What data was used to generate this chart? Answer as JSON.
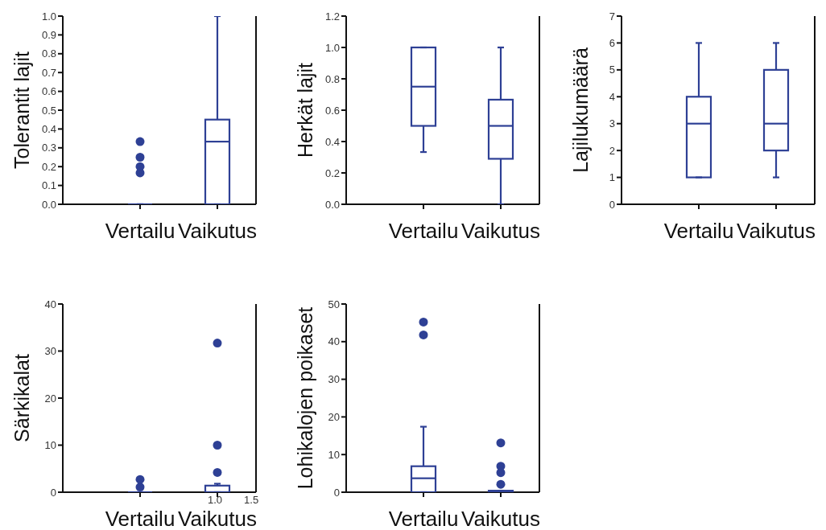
{
  "chart_data": [
    {
      "type": "box",
      "ylabel": "Tolerantit lajit",
      "categories": [
        "Vertailu",
        "Vaikutus"
      ],
      "color": "#2e4095",
      "marker": "circle",
      "ylim": [
        0,
        1
      ],
      "yticks": [
        {
          "value": 0,
          "label": "0.0"
        },
        {
          "value": 0.1,
          "label": "0.1"
        },
        {
          "value": 0.2,
          "label": "0.2"
        },
        {
          "value": 0.3,
          "label": "0.3"
        },
        {
          "value": 0.4,
          "label": "0.4"
        },
        {
          "value": 0.5,
          "label": "0.5"
        },
        {
          "value": 0.6,
          "label": "0.6"
        },
        {
          "value": 0.7,
          "label": "0.7"
        },
        {
          "value": 0.8,
          "label": "0.8"
        },
        {
          "value": 0.9,
          "label": "0.9"
        },
        {
          "value": 1,
          "label": "1.0"
        }
      ],
      "boxes": [
        {
          "low": 0,
          "q1": 0,
          "median": 0,
          "q3": 0,
          "high": 0,
          "outliers": [
            0.167,
            0.2,
            0.25,
            0.333
          ]
        },
        {
          "low": 0,
          "q1": 0,
          "median": 0.333,
          "q3": 0.45,
          "high": 1
        }
      ]
    },
    {
      "type": "box",
      "ylabel": "Herkät lajit",
      "categories": [
        "Vertailu",
        "Vaikutus"
      ],
      "color": "#2e4095",
      "ylim": [
        0,
        1.2
      ],
      "yticks": [
        {
          "value": 0,
          "label": "0.0"
        },
        {
          "value": 0.2,
          "label": "0.2"
        },
        {
          "value": 0.4,
          "label": "0.4"
        },
        {
          "value": 0.6,
          "label": "0.6"
        },
        {
          "value": 0.8,
          "label": "0.8"
        },
        {
          "value": 1,
          "label": "1.0"
        },
        {
          "value": 1.2,
          "label": "1.2"
        }
      ],
      "boxes": [
        {
          "low": 0.333,
          "q1": 0.5,
          "median": 0.75,
          "q3": 1,
          "high": 1
        },
        {
          "low": 0,
          "q1": 0.29,
          "median": 0.5,
          "q3": 0.667,
          "high": 1
        }
      ]
    },
    {
      "type": "box",
      "ylabel": "Lajilukumäärä",
      "categories": [
        "Vertailu",
        "Vaikutus"
      ],
      "color": "#2e4095",
      "ylim": [
        0,
        7
      ],
      "yticks": [
        0,
        1,
        2,
        3,
        4,
        5,
        6,
        7
      ],
      "boxes": [
        {
          "low": 1,
          "q1": 1,
          "median": 3,
          "q3": 4,
          "high": 6
        },
        {
          "low": 1,
          "q1": 2,
          "median": 3,
          "q3": 5,
          "high": 6
        }
      ]
    },
    {
      "type": "box",
      "ylabel": "Särkikalat",
      "categories": [
        "Vertailu",
        "Vaikutus"
      ],
      "color": "#2e4095",
      "marker": "circle",
      "ylim": [
        0,
        40
      ],
      "yticks": [
        0,
        10,
        20,
        30,
        40
      ],
      "annotations": [
        "1.0",
        "1.5"
      ],
      "boxes": [
        {
          "low": 0,
          "q1": 0,
          "median": 0,
          "q3": 0,
          "high": 0,
          "outliers": [
            1.1,
            2.7
          ]
        },
        {
          "low": 0,
          "q1": 0,
          "median": 0,
          "q3": 1.4,
          "high": 1.8,
          "outliers": [
            4.2,
            10,
            31.7
          ]
        }
      ]
    },
    {
      "type": "box",
      "ylabel": "Lohikalojen poikaset",
      "categories": [
        "Vertailu",
        "Vaikutus"
      ],
      "color": "#2e4095",
      "marker": "circle",
      "ylim": [
        0,
        50
      ],
      "yticks": [
        0,
        10,
        20,
        30,
        40,
        50
      ],
      "boxes": [
        {
          "low": 0,
          "q1": 0,
          "median": 3.7,
          "q3": 6.9,
          "high": 17.4,
          "outliers": [
            41.8,
            45.2
          ]
        },
        {
          "low": 0,
          "q1": 0,
          "median": 0,
          "q3": 0.4,
          "high": 0.4,
          "outliers": [
            2.1,
            5.2,
            6.9,
            13.1
          ]
        }
      ]
    }
  ]
}
